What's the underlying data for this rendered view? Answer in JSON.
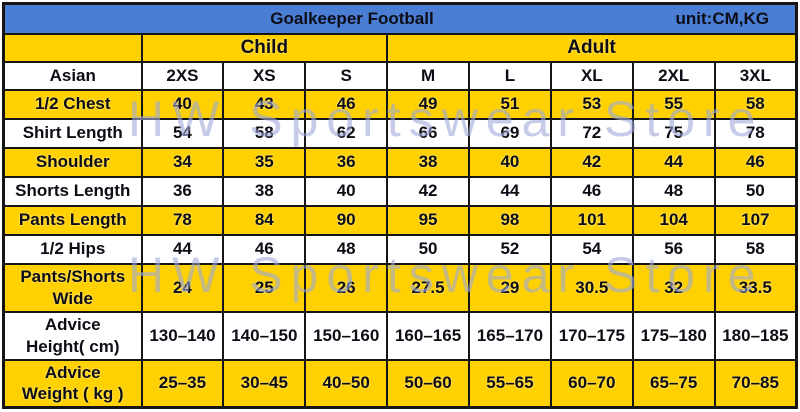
{
  "chart_data": {
    "type": "table",
    "title": "Goalkeeper Football",
    "unit": "unit:CM,KG",
    "column_groups": [
      {
        "label": "Child",
        "span": 3
      },
      {
        "label": "Adult",
        "span": 5
      }
    ],
    "size_system_label": "Asian",
    "columns": [
      "2XS",
      "XS",
      "S",
      "M",
      "L",
      "XL",
      "2XL",
      "3XL"
    ],
    "rows": [
      {
        "label": "1/2 Chest",
        "values": [
          "40",
          "43",
          "46",
          "49",
          "51",
          "53",
          "55",
          "58"
        ]
      },
      {
        "label": "Shirt Length",
        "values": [
          "54",
          "58",
          "62",
          "66",
          "69",
          "72",
          "75",
          "78"
        ]
      },
      {
        "label": "Shoulder",
        "values": [
          "34",
          "35",
          "36",
          "38",
          "40",
          "42",
          "44",
          "46"
        ]
      },
      {
        "label": "Shorts Length",
        "values": [
          "36",
          "38",
          "40",
          "42",
          "44",
          "46",
          "48",
          "50"
        ]
      },
      {
        "label": "Pants Length",
        "values": [
          "78",
          "84",
          "90",
          "95",
          "98",
          "101",
          "104",
          "107"
        ]
      },
      {
        "label": "1/2 Hips",
        "values": [
          "44",
          "46",
          "48",
          "50",
          "52",
          "54",
          "56",
          "58"
        ]
      },
      {
        "label": "Pants/Shorts\nWide",
        "values": [
          "24",
          "25",
          "26",
          "27.5",
          "29",
          "30.5",
          "32",
          "33.5"
        ]
      },
      {
        "label": "Advice\nHeight( cm)",
        "values": [
          "130–140",
          "140–150",
          "150–160",
          "160–165",
          "165–170",
          "170–175",
          "175–180",
          "180–185"
        ]
      },
      {
        "label": "Advice\nWeight ( kg )",
        "values": [
          "25–35",
          "30–45",
          "40–50",
          "50–60",
          "55–65",
          "60–70",
          "65–75",
          "70–85"
        ]
      }
    ]
  },
  "watermark": {
    "text": "HW Sportswear Store"
  },
  "colors": {
    "header_blue": "#4a7ed5",
    "cell_yellow": "#ffd100",
    "border": "#151515",
    "watermark": "#9ea8d8"
  }
}
